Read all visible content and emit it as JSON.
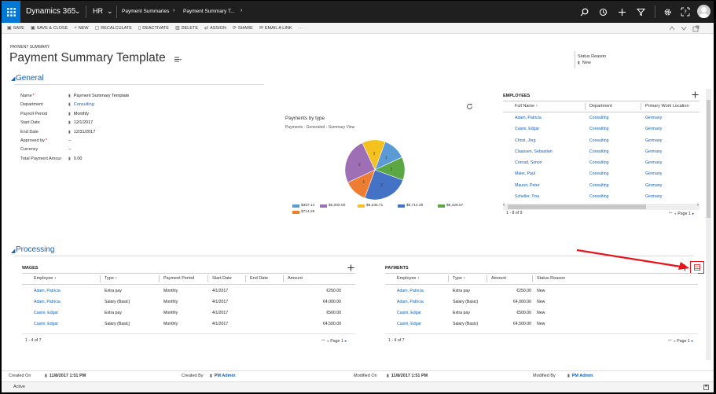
{
  "topbar": {
    "app": "Dynamics 365",
    "module": "HR",
    "crumb1": "Payment Summaries",
    "crumb2": "Payment Summary T...",
    "chev": "⌄",
    "sep": "›"
  },
  "commands": [
    {
      "icon": "save-icon",
      "glyph": "▣",
      "label": "SAVE"
    },
    {
      "icon": "save-close-icon",
      "glyph": "▣",
      "label": "SAVE & CLOSE"
    },
    {
      "icon": "plus-icon",
      "glyph": "+",
      "label": "NEW"
    },
    {
      "icon": "recalculate-icon",
      "glyph": "▢",
      "label": "RECALCULATE"
    },
    {
      "icon": "deactivate-icon",
      "glyph": "▯",
      "label": "DEACTIVATE"
    },
    {
      "icon": "delete-icon",
      "glyph": "▥",
      "label": "DELETE"
    },
    {
      "icon": "assign-icon",
      "glyph": "⇄",
      "label": "ASSIGN"
    },
    {
      "icon": "share-icon",
      "glyph": "⟳",
      "label": "SHARE"
    },
    {
      "icon": "email-icon",
      "glyph": "✉",
      "label": "EMAIL A LINK"
    },
    {
      "icon": "more-icon",
      "glyph": "···",
      "label": ""
    }
  ],
  "record": {
    "entity": "PAYMENT SUMMARY",
    "title": "Payment Summary Template",
    "status_label": "Status Reason",
    "status_value": "New"
  },
  "general": {
    "title": "General",
    "fields": [
      {
        "label": "Name",
        "value": "Payment Summary Template",
        "required": true,
        "lock": true,
        "link": false
      },
      {
        "label": "Department",
        "value": "Consulting",
        "required": false,
        "lock": true,
        "link": true
      },
      {
        "label": "Payroll Period",
        "value": "Monthly",
        "required": false,
        "lock": true,
        "link": false
      },
      {
        "label": "Start Date",
        "value": "12/1/2017",
        "required": false,
        "lock": true,
        "link": false
      },
      {
        "label": "End Date",
        "value": "12/31/2017",
        "required": false,
        "lock": true,
        "link": false
      },
      {
        "label": "Approved by",
        "value": "--",
        "required": true,
        "lock": false,
        "link": false
      },
      {
        "label": "Currency",
        "value": "--",
        "required": false,
        "lock": false,
        "link": false
      },
      {
        "label": "Total Payment Amour",
        "value": "0.00",
        "required": false,
        "lock": true,
        "link": false
      }
    ]
  },
  "chart": {
    "title": "Payments by type",
    "subtitle": "Payments - Generated - Summary View"
  },
  "chart_data": {
    "type": "pie",
    "title": "Payments by type",
    "subtitle": "Payments - Generated - Summary View",
    "categories": [
      "$357.14",
      "$5,000.00",
      "$5,535.71",
      "$5,714.29",
      "$6,428.57",
      "$714.29"
    ],
    "values": [
      1,
      2,
      1,
      2,
      1,
      1
    ],
    "slice_labels": [
      "1",
      "2",
      "1",
      "2",
      "1",
      "1"
    ],
    "colors": [
      "#5b9bd5",
      "#9e6fb5",
      "#f5c11e",
      "#4472c4",
      "#5aa743",
      "#ed7d31"
    ],
    "legend": "bottom"
  },
  "employees": {
    "title": "EMPLOYEES",
    "columns": [
      "Full Name ↑",
      "Department",
      "Primary Work Location"
    ],
    "rows": [
      [
        "Adam, Patricia",
        "Consulting",
        "Germany"
      ],
      [
        "Casini, Edgar",
        "Consulting",
        "Germany"
      ],
      [
        "Christ, Jörg",
        "Consulting",
        "Germany"
      ],
      [
        "Claassen, Sebastian",
        "Consulting",
        "Germany"
      ],
      [
        "Conrad, Simon",
        "Consulting",
        "Germany"
      ],
      [
        "Maier, Paul",
        "Consulting",
        "Germany"
      ],
      [
        "Maurer, Peter",
        "Consulting",
        "Germany"
      ],
      [
        "Scheller, Tina",
        "Consulting",
        "Germany"
      ]
    ],
    "count": "1 - 8 of 9",
    "page": "Page 1"
  },
  "processing": {
    "title": "Processing"
  },
  "wages": {
    "title": "WAGES",
    "columns": [
      "Employee ↑",
      "Type ↑",
      "Payment Period",
      "Start Date",
      "End Date",
      "Amount"
    ],
    "rows": [
      [
        "Adam, Patricia",
        "Extra pay",
        "Monthly",
        "4/1/2017",
        "",
        "€250.00"
      ],
      [
        "Adam, Patricia",
        "Salary (Basic)",
        "Monthly",
        "4/1/2017",
        "",
        "€4,000.00"
      ],
      [
        "Casini, Edgar",
        "Extra pay",
        "Monthly",
        "4/1/2017",
        "",
        "€500.00"
      ],
      [
        "Casini, Edgar",
        "Salary (Basic)",
        "Monthly",
        "4/1/2017",
        "",
        "€4,500.00"
      ]
    ],
    "count": "1 - 4 of 7",
    "page": "Page 1"
  },
  "payments": {
    "title": "PAYMENTS",
    "columns": [
      "Employee ↑",
      "Type ↑",
      "Amount",
      "Status Reason"
    ],
    "rows": [
      [
        "Adam, Patricia",
        "Extra pay",
        "€250.00",
        "New"
      ],
      [
        "Adam, Patricia",
        "Salary (Basic)",
        "€4,000.00",
        "New"
      ],
      [
        "Casini, Edgar",
        "Extra pay",
        "€500.00",
        "New"
      ],
      [
        "Casini, Edgar",
        "Salary (Basic)",
        "€4,500.00",
        "New"
      ]
    ],
    "count": "1 - 4 of 7",
    "page": "Page 1"
  },
  "footer": {
    "created_on_label": "Created On",
    "created_on": "11/8/2017 1:51 PM",
    "created_by_label": "Created By",
    "created_by": "PM Admin",
    "modified_on_label": "Modified On",
    "modified_on": "11/8/2017 1:51 PM",
    "modified_by_label": "Modified By",
    "modified_by": "PM Admin",
    "status": "Active"
  },
  "colors": {
    "accent": "#1160b7",
    "topbar": "#1f1f1f",
    "waffle": "#0078d4",
    "annotation": "#e8131b"
  }
}
